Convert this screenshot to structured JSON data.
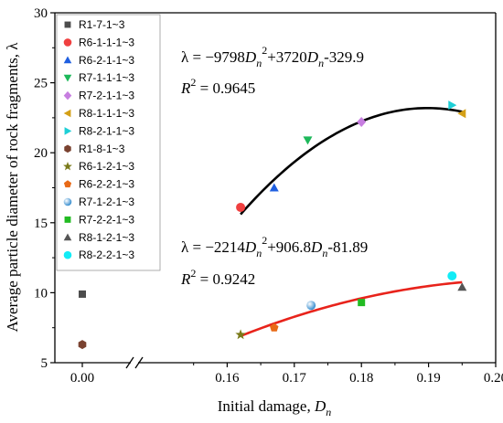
{
  "chart_data": {
    "type": "scatter",
    "title": "",
    "xlabel_main": "Initial damage, ",
    "xlabel_var": "D",
    "xlabel_sub": "n",
    "ylabel": "Average particle diameter of rock fragments, λ",
    "ylim": [
      5,
      30
    ],
    "yticks": [
      "5",
      "10",
      "15",
      "20",
      "25",
      "30"
    ],
    "xlim_left": [
      -0.005,
      0.005
    ],
    "xticks_left": [
      "0.00"
    ],
    "xlim_right": [
      0.15,
      0.2
    ],
    "xticks_right": [
      "0.16",
      "0.17",
      "0.18",
      "0.19",
      "0.20"
    ],
    "axis_break": true,
    "grid": false,
    "legend_position": "top-left",
    "series": [
      {
        "name": "R1-7-1~3",
        "marker": "square",
        "color": "#4d4d4d",
        "points": [
          [
            0.0,
            9.9
          ]
        ]
      },
      {
        "name": "R6-1-1-1~3",
        "marker": "circle",
        "color": "#f04040",
        "points": [
          [
            0.162,
            16.1
          ]
        ]
      },
      {
        "name": "R6-2-1-1~3",
        "marker": "triangle-up",
        "color": "#1f5fe0",
        "points": [
          [
            0.167,
            17.5
          ]
        ]
      },
      {
        "name": "R7-1-1-1~3",
        "marker": "triangle-down",
        "color": "#1db85a",
        "points": [
          [
            0.172,
            20.9
          ]
        ]
      },
      {
        "name": "R7-2-1-1~3",
        "marker": "diamond",
        "color": "#c77ee0",
        "points": [
          [
            0.18,
            22.2
          ]
        ]
      },
      {
        "name": "R8-1-1-1~3",
        "marker": "triangle-left",
        "color": "#d4a017",
        "points": [
          [
            0.195,
            22.8
          ]
        ]
      },
      {
        "name": "R8-2-1-1~3",
        "marker": "triangle-right",
        "color": "#1ecfd6",
        "points": [
          [
            0.1935,
            23.4
          ]
        ]
      },
      {
        "name": "R1-8-1~3",
        "marker": "hexagon",
        "color": "#7a4230",
        "points": [
          [
            0.0,
            6.3
          ]
        ]
      },
      {
        "name": "R6-1-2-1~3",
        "marker": "star",
        "color": "#7a7a1a",
        "points": [
          [
            0.162,
            7.0
          ]
        ]
      },
      {
        "name": "R6-2-2-1~3",
        "marker": "pentagon",
        "color": "#e86a17",
        "points": [
          [
            0.167,
            7.5
          ]
        ]
      },
      {
        "name": "R7-1-2-1~3",
        "marker": "sphere",
        "color": "#3a8fd0",
        "points": [
          [
            0.1725,
            9.1
          ]
        ]
      },
      {
        "name": "R7-2-2-1~3",
        "marker": "square",
        "color": "#22bb22",
        "points": [
          [
            0.18,
            9.3
          ]
        ]
      },
      {
        "name": "R8-1-2-1~3",
        "marker": "triangle-up",
        "color": "#555555",
        "points": [
          [
            0.195,
            10.4
          ]
        ]
      },
      {
        "name": "R8-2-2-1~3",
        "marker": "circle",
        "color": "#12ecf6",
        "points": [
          [
            0.1935,
            11.2
          ]
        ]
      }
    ],
    "fits": [
      {
        "color": "#000000",
        "coefficients": [
          -9798,
          3720,
          -329.9
        ],
        "x_range": [
          0.162,
          0.195
        ],
        "equation_parts": [
          "λ = −9798",
          "D",
          "n",
          "2",
          "+3720",
          "D",
          "n",
          "-329.9"
        ],
        "r2_label": "R",
        "r2_value": " = 0.9645"
      },
      {
        "color": "#e8231b",
        "coefficients": [
          -2214,
          906.8,
          -81.89
        ],
        "x_range": [
          0.162,
          0.195
        ],
        "equation_parts": [
          "λ = −2214",
          "D",
          "n",
          "2",
          "+906.8",
          "D",
          "n",
          "-81.89"
        ],
        "r2_label": "R",
        "r2_value": " = 0.9242"
      }
    ]
  }
}
